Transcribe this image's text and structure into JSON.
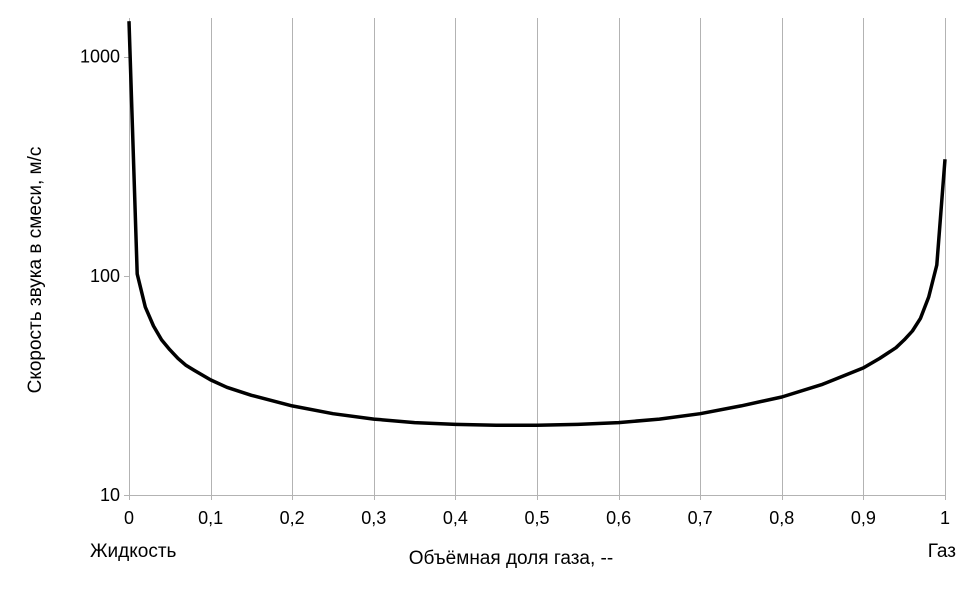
{
  "chart_data": {
    "type": "line",
    "xlabel": "Объёмная доля газа, --",
    "ylabel": "Скорость звука в смеси, м/с",
    "x_scale": "linear",
    "y_scale": "log",
    "xlim": [
      0,
      1
    ],
    "ylim": [
      10,
      1500
    ],
    "x_ticks": [
      0,
      0.1,
      0.2,
      0.3,
      0.4,
      0.5,
      0.6,
      0.7,
      0.8,
      0.9,
      1
    ],
    "x_tick_labels": [
      "0",
      "0,1",
      "0,2",
      "0,3",
      "0,4",
      "0,5",
      "0,6",
      "0,7",
      "0,8",
      "0,9",
      "1"
    ],
    "y_ticks": [
      10,
      100,
      1000
    ],
    "y_tick_labels": [
      "10",
      "100",
      "1000"
    ],
    "grid": {
      "vertical": true,
      "horizontal": false
    },
    "end_labels": {
      "left": "Жидкость",
      "right": "Газ"
    },
    "series": [
      {
        "color": "#000000",
        "x": [
          0,
          0.01,
          0.02,
          0.03,
          0.04,
          0.05,
          0.06,
          0.07,
          0.08,
          0.1,
          0.12,
          0.15,
          0.2,
          0.25,
          0.3,
          0.35,
          0.4,
          0.45,
          0.5,
          0.55,
          0.6,
          0.65,
          0.7,
          0.75,
          0.8,
          0.85,
          0.9,
          0.92,
          0.94,
          0.95,
          0.96,
          0.97,
          0.98,
          0.99,
          1.0
        ],
        "y": [
          1450,
          102,
          72,
          59,
          51,
          46,
          42,
          39,
          37,
          33.5,
          31,
          28.5,
          25.5,
          23.5,
          22.2,
          21.4,
          21,
          20.8,
          20.8,
          21,
          21.4,
          22.2,
          23.5,
          25.5,
          28,
          32,
          38,
          42,
          47,
          51,
          56,
          64,
          80,
          112,
          340
        ]
      }
    ]
  }
}
